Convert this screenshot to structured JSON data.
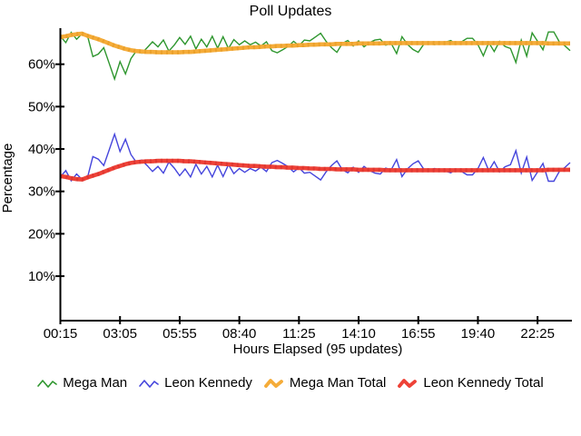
{
  "chart_data": {
    "type": "line",
    "title": "Poll Updates",
    "xlabel": "Hours Elapsed (95 updates)",
    "ylabel": "Percentage",
    "n_points": 95,
    "grid": false,
    "legend_position": "bottom",
    "ylim": [
      0,
      69
    ],
    "y_ticks": [
      10,
      20,
      30,
      40,
      50,
      60
    ],
    "y_tick_labels": [
      "10%",
      "20%",
      "30%",
      "40%",
      "50%",
      "60%"
    ],
    "x_tick_labels": [
      "00:15",
      "03:05",
      "05:55",
      "08:40",
      "11:25",
      "14:10",
      "16:55",
      "19:40",
      "22:25"
    ],
    "x_tick_indices": [
      0,
      11,
      22,
      33,
      44,
      55,
      66,
      77,
      88
    ],
    "axis_color": "#000000",
    "series": [
      {
        "name": "Mega Man",
        "color": "#2e962e",
        "style": "thin",
        "values": [
          66.6,
          65.1,
          67.5,
          65.9,
          67.2,
          66.7,
          61.8,
          62.4,
          63.9,
          60.2,
          56.5,
          60.6,
          57.7,
          61.3,
          63.1,
          62.6,
          63.9,
          65.3,
          64.1,
          65.7,
          63.1,
          64.5,
          66.3,
          64.7,
          66.6,
          63.6,
          65.9,
          64.1,
          66.6,
          63.8,
          66.5,
          63.7,
          65.8,
          64.6,
          65.5,
          64.6,
          65.2,
          64.3,
          65.3,
          63.2,
          62.7,
          63.4,
          64.2,
          65.4,
          64.4,
          65.7,
          65.5,
          66.4,
          67.3,
          65.4,
          63.9,
          62.8,
          64.9,
          65.6,
          64.3,
          65.5,
          64.1,
          65.1,
          65.7,
          65.9,
          64.5,
          64.9,
          62.5,
          66.5,
          64.7,
          63.5,
          62.8,
          64.7,
          65.2,
          64.6,
          64.9,
          65.2,
          65.6,
          64.7,
          65.3,
          66.1,
          66.1,
          64.6,
          62.0,
          65.1,
          63.0,
          65.4,
          64.2,
          63.7,
          60.4,
          65.7,
          61.9,
          67.4,
          65.4,
          63.4,
          67.6,
          67.6,
          65.3,
          64.4,
          63.2
        ]
      },
      {
        "name": "Leon Kennedy",
        "color": "#4545dc",
        "style": "thin",
        "values": [
          33.4,
          34.9,
          32.5,
          34.1,
          32.8,
          33.3,
          38.2,
          37.6,
          36.1,
          39.8,
          43.5,
          39.4,
          42.3,
          38.7,
          36.9,
          37.4,
          36.1,
          34.7,
          35.9,
          34.3,
          36.9,
          35.5,
          33.7,
          35.3,
          33.4,
          36.4,
          34.1,
          35.9,
          33.4,
          36.2,
          33.5,
          36.3,
          34.2,
          35.4,
          34.5,
          35.4,
          34.8,
          35.7,
          34.7,
          36.8,
          37.3,
          36.6,
          35.8,
          34.6,
          35.6,
          34.3,
          34.5,
          33.6,
          32.7,
          34.6,
          36.1,
          37.2,
          35.1,
          34.4,
          35.7,
          34.5,
          35.9,
          34.9,
          34.3,
          34.1,
          35.5,
          35.1,
          37.5,
          33.5,
          35.3,
          36.5,
          37.2,
          35.3,
          34.8,
          35.4,
          35.1,
          34.8,
          34.4,
          35.3,
          34.7,
          33.9,
          33.9,
          35.4,
          38.0,
          34.9,
          37.0,
          34.6,
          35.8,
          36.3,
          39.6,
          34.3,
          38.1,
          32.6,
          34.6,
          36.6,
          32.4,
          32.4,
          34.7,
          35.6,
          36.8
        ]
      },
      {
        "name": "Mega Man Total",
        "color": "#f5ac39",
        "bead_color": "#e2981f",
        "style": "thick",
        "values": [
          66.4,
          66.6,
          66.9,
          67.1,
          67.2,
          66.7,
          66.3,
          65.9,
          65.4,
          64.9,
          64.4,
          64.0,
          63.6,
          63.3,
          63.1,
          63.0,
          62.9,
          62.9,
          62.8,
          62.8,
          62.8,
          62.8,
          62.8,
          62.9,
          62.9,
          63.0,
          63.1,
          63.2,
          63.3,
          63.4,
          63.5,
          63.6,
          63.7,
          63.8,
          63.9,
          64.0,
          64.0,
          64.1,
          64.2,
          64.2,
          64.3,
          64.3,
          64.4,
          64.4,
          64.5,
          64.5,
          64.6,
          64.6,
          64.7,
          64.7,
          64.7,
          64.8,
          64.8,
          64.8,
          64.8,
          64.9,
          64.9,
          64.9,
          64.9,
          64.9,
          65.0,
          65.0,
          65.0,
          65.0,
          65.0,
          65.0,
          65.0,
          65.0,
          65.0,
          65.0,
          65.0,
          65.0,
          65.0,
          65.0,
          65.0,
          65.0,
          65.0,
          65.0,
          65.0,
          65.0,
          65.0,
          65.0,
          65.0,
          65.0,
          65.0,
          65.0,
          65.0,
          65.0,
          65.0,
          65.0,
          64.9,
          64.9,
          64.9,
          64.9,
          64.9
        ]
      },
      {
        "name": "Leon Kennedy Total",
        "color": "#ee4237",
        "bead_color": "#d42d2d",
        "style": "thick",
        "values": [
          33.6,
          33.4,
          33.1,
          32.9,
          32.8,
          33.3,
          33.7,
          34.1,
          34.6,
          35.1,
          35.6,
          36.0,
          36.4,
          36.7,
          36.9,
          37.0,
          37.1,
          37.1,
          37.2,
          37.2,
          37.2,
          37.2,
          37.2,
          37.1,
          37.1,
          37.0,
          36.9,
          36.8,
          36.7,
          36.6,
          36.5,
          36.4,
          36.3,
          36.2,
          36.1,
          36.0,
          36.0,
          35.9,
          35.8,
          35.8,
          35.7,
          35.7,
          35.6,
          35.6,
          35.5,
          35.5,
          35.4,
          35.4,
          35.3,
          35.3,
          35.3,
          35.2,
          35.2,
          35.2,
          35.2,
          35.1,
          35.1,
          35.1,
          35.1,
          35.1,
          35.0,
          35.0,
          35.0,
          35.0,
          35.0,
          35.0,
          35.0,
          35.0,
          35.0,
          35.0,
          35.0,
          35.0,
          35.0,
          35.0,
          35.0,
          35.0,
          35.0,
          35.0,
          35.0,
          35.0,
          35.0,
          35.0,
          35.0,
          35.0,
          35.0,
          35.0,
          35.0,
          35.0,
          35.0,
          35.0,
          35.1,
          35.1,
          35.1,
          35.1,
          35.1
        ]
      }
    ]
  }
}
